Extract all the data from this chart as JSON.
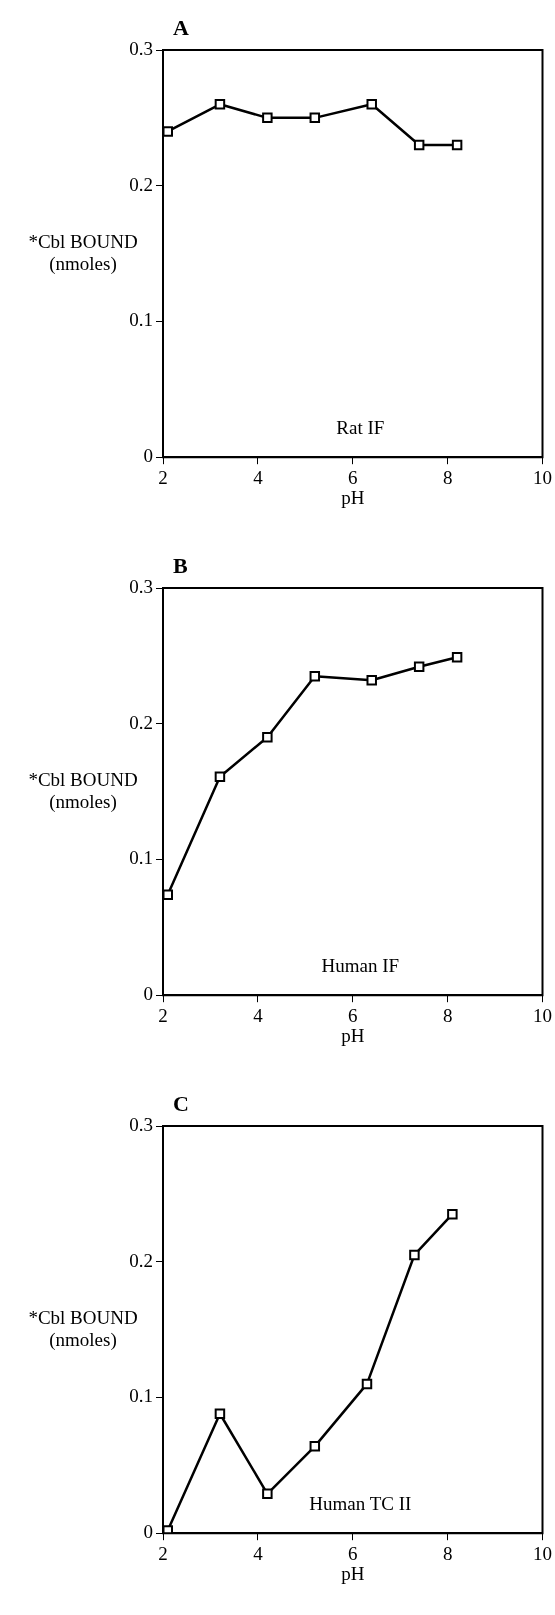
{
  "chart_data": [
    {
      "type": "line",
      "title": "A",
      "xlabel": "pH",
      "ylabel": "*Cbl BOUND (nmoles)",
      "annotations": [
        "Rat IF"
      ],
      "marker": "square",
      "line_style": "solid",
      "grid": false,
      "legend": false,
      "x": [
        2.1,
        3.2,
        4.2,
        5.2,
        6.4,
        7.4,
        8.2
      ],
      "series": [
        {
          "color": "#000000",
          "values": [
            0.24,
            0.26,
            0.25,
            0.25,
            0.26,
            0.23,
            0.23
          ]
        }
      ],
      "xlim": [
        2,
        10
      ],
      "xticks": [
        2,
        4,
        6,
        8,
        10
      ],
      "ylim": [
        0,
        0.3
      ],
      "yticks": [
        0,
        0.1,
        0.2,
        0.3
      ]
    },
    {
      "type": "line",
      "title": "B",
      "xlabel": "pH",
      "ylabel": "*Cbl BOUND (nmoles)",
      "annotations": [
        "Human IF"
      ],
      "marker": "square",
      "line_style": "solid",
      "grid": false,
      "legend": false,
      "x": [
        2.1,
        3.2,
        4.2,
        5.2,
        6.4,
        7.4,
        8.2
      ],
      "series": [
        {
          "color": "#000000",
          "values": [
            0.074,
            0.161,
            0.19,
            0.235,
            0.232,
            0.242,
            0.249
          ]
        }
      ],
      "xlim": [
        2,
        10
      ],
      "xticks": [
        2,
        4,
        6,
        8,
        10
      ],
      "ylim": [
        0,
        0.3
      ],
      "yticks": [
        0,
        0.1,
        0.2,
        0.3
      ]
    },
    {
      "type": "line",
      "title": "C",
      "xlabel": "pH",
      "ylabel": "*Cbl BOUND (nmoles)",
      "annotations": [
        "Human TC II"
      ],
      "marker": "square",
      "line_style": "solid",
      "grid": false,
      "legend": false,
      "x": [
        2.1,
        3.2,
        4.2,
        5.2,
        6.3,
        7.3,
        8.1
      ],
      "series": [
        {
          "color": "#000000",
          "values": [
            0.002,
            0.088,
            0.029,
            0.064,
            0.11,
            0.205,
            0.235
          ]
        }
      ],
      "xlim": [
        2,
        10
      ],
      "xticks": [
        2,
        4,
        6,
        8,
        10
      ],
      "ylim": [
        0,
        0.3
      ],
      "yticks": [
        0,
        0.1,
        0.2,
        0.3
      ]
    }
  ]
}
